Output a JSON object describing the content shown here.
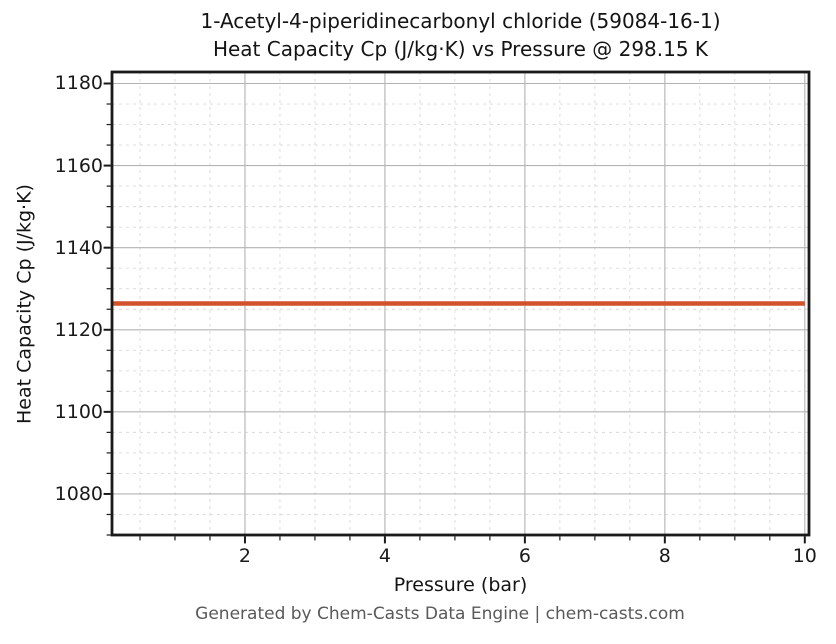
{
  "title": {
    "line1": "1-Acetyl-4-piperidinecarbonyl chloride (59084-16-1)",
    "line2": "Heat Capacity Cp (J/kg·K) vs Pressure @ 298.15 K"
  },
  "footer": "Generated by Chem-Casts Data Engine | chem-casts.com",
  "colors": {
    "line": "#d1522b",
    "grid_major": "#b3b3b3",
    "grid_minor": "#d9d9d9",
    "axis": "#1a1a1a",
    "footer_text": "#595959"
  },
  "chart_data": {
    "type": "line",
    "title": "1-Acetyl-4-piperidinecarbonyl chloride (59084-16-1) — Heat Capacity Cp (J/kg·K) vs Pressure @ 298.15 K",
    "xlabel": "Pressure (bar)",
    "ylabel": "Heat Capacity Cp (J/kg·K)",
    "xlim": [
      0.1,
      10.06
    ],
    "ylim": [
      1070,
      1182.8
    ],
    "x_major_ticks": [
      2,
      4,
      6,
      8,
      10
    ],
    "y_major_ticks": [
      1080,
      1100,
      1120,
      1140,
      1160,
      1180
    ],
    "x_minor_step": 0.5,
    "y_minor_step": 5,
    "grid": true,
    "legend": false,
    "series": [
      {
        "name": "Heat Capacity Cp",
        "x": [
          0.1,
          10.0
        ],
        "values": [
          1126.4,
          1126.4
        ],
        "color": "#d1522b",
        "linewidth": 4.5
      }
    ]
  }
}
